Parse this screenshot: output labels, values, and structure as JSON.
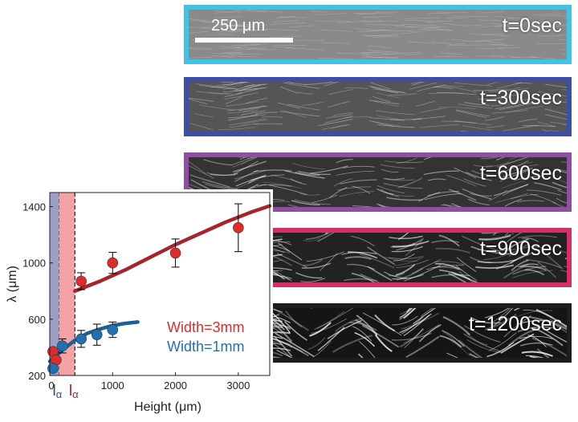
{
  "panels": [
    {
      "label": "t=0sec",
      "border_color": "#3fc3e6",
      "bg_color": "#8a8a8a",
      "intensity": 0.0
    },
    {
      "label": "t=300sec",
      "border_color": "#3e4fa3",
      "bg_color": "#555555",
      "intensity": 0.25
    },
    {
      "label": "t=600sec",
      "border_color": "#8f4ea1",
      "bg_color": "#333333",
      "intensity": 0.5
    },
    {
      "label": "t=900sec",
      "border_color": "#d42e6b",
      "bg_color": "#222222",
      "intensity": 0.75
    },
    {
      "label": "t=1200sec",
      "border_color": "#1c1c1c",
      "bg_color": "#151515",
      "intensity": 1.0
    }
  ],
  "scale_bar": {
    "label": "250 μm"
  },
  "chart_data": {
    "type": "scatter",
    "xlabel": "Height (μm)",
    "ylabel": "λ (μm)",
    "xlim": [
      0,
      3500
    ],
    "ylim": [
      200,
      1500
    ],
    "xticks": [
      0,
      1000,
      2000,
      3000
    ],
    "yticks": [
      200,
      600,
      1000,
      1400
    ],
    "grid": false,
    "legend_placement": "bottom-right",
    "bands": [
      {
        "name": "l_alpha_blue",
        "x": [
          0,
          150
        ],
        "color": "#9b9fc4",
        "line_color": "#2a4e8f",
        "label_main": "l",
        "label_sub": "α"
      },
      {
        "name": "l_alpha_red",
        "x": [
          150,
          400
        ],
        "color": "#f3a3a6",
        "line_color": "#333333",
        "label_main": "l",
        "label_sub": "α"
      }
    ],
    "series": [
      {
        "name": "Width=3mm",
        "color": "#e02b2b",
        "fit_color": "#a8242c",
        "x": [
          50,
          100,
          500,
          1000,
          2000,
          3000
        ],
        "y": [
          370,
          310,
          870,
          1000,
          1070,
          1250
        ],
        "err": [
          0,
          0,
          60,
          75,
          100,
          170
        ],
        "fit": {
          "x": [
            400,
            800,
            1200,
            1600,
            2000,
            2400,
            2800,
            3200,
            3500
          ],
          "y": [
            800,
            870,
            950,
            1040,
            1130,
            1210,
            1290,
            1360,
            1405
          ]
        }
      },
      {
        "name": "Width=1mm",
        "color": "#2070b4",
        "fit_color": "#1c5f95",
        "x": [
          50,
          200,
          500,
          750,
          1000
        ],
        "y": [
          250,
          410,
          460,
          490,
          525
        ],
        "err": [
          0,
          50,
          60,
          75,
          55
        ],
        "fit": {
          "x": [
            0,
            200,
            400,
            600,
            800,
            1000,
            1200,
            1400
          ],
          "y": [
            300,
            380,
            450,
            500,
            530,
            555,
            570,
            580
          ]
        }
      }
    ]
  }
}
